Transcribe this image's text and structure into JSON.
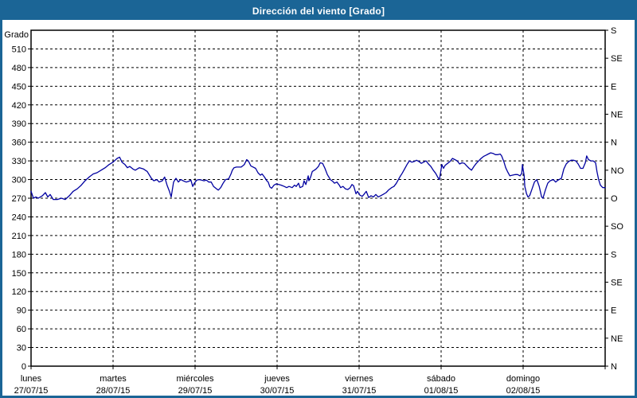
{
  "window": {
    "title": "Dirección del viento [Grado]"
  },
  "colors": {
    "chrome_blue": "#1b6596",
    "series_blue": "#0000a0",
    "grid_color": "#000000",
    "background": "#ffffff"
  },
  "chart_data": {
    "type": "line",
    "title": "Dirección del viento [Grado]",
    "ylabel": "Grado",
    "ylim": [
      0,
      540
    ],
    "grid": "dashed",
    "y_ticks_left": [
      0,
      30,
      60,
      90,
      120,
      150,
      180,
      210,
      240,
      270,
      300,
      330,
      360,
      390,
      420,
      450,
      480,
      510
    ],
    "right_axis_compass": [
      {
        "value": 0,
        "label": "N"
      },
      {
        "value": 45,
        "label": "NE"
      },
      {
        "value": 90,
        "label": "E"
      },
      {
        "value": 135,
        "label": "SE"
      },
      {
        "value": 180,
        "label": "S"
      },
      {
        "value": 225,
        "label": "SO"
      },
      {
        "value": 270,
        "label": "O"
      },
      {
        "value": 315,
        "label": "NO"
      },
      {
        "value": 360,
        "label": "N"
      },
      {
        "value": 405,
        "label": "NE"
      },
      {
        "value": 450,
        "label": "E"
      },
      {
        "value": 495,
        "label": "SE"
      },
      {
        "value": 540,
        "label": "S"
      }
    ],
    "x_axis": {
      "unit": "hours",
      "range_hours": [
        0,
        168
      ],
      "hours_per_day": 24,
      "days": [
        {
          "name": "lunes",
          "date": "27/07/15"
        },
        {
          "name": "martes",
          "date": "28/07/15"
        },
        {
          "name": "miércoles",
          "date": "29/07/15"
        },
        {
          "name": "jueves",
          "date": "30/07/15"
        },
        {
          "name": "viernes",
          "date": "31/07/15"
        },
        {
          "name": "sábado",
          "date": "01/08/15"
        },
        {
          "name": "domingo",
          "date": "02/08/15"
        }
      ]
    },
    "series": [
      {
        "name": "Dirección del viento",
        "color": "#0000a0",
        "points_hours_degrees": [
          [
            0,
            281
          ],
          [
            0.7,
            270
          ],
          [
            1.4,
            272
          ],
          [
            2.1,
            270
          ],
          [
            3.3,
            274
          ],
          [
            4.2,
            279
          ],
          [
            4.9,
            272
          ],
          [
            5.6,
            276
          ],
          [
            6.5,
            268
          ],
          [
            7.7,
            268
          ],
          [
            8.9,
            270
          ],
          [
            10,
            268
          ],
          [
            11.2,
            274
          ],
          [
            12.3,
            281
          ],
          [
            13.5,
            285
          ],
          [
            14.7,
            291
          ],
          [
            15.8,
            298
          ],
          [
            17,
            304
          ],
          [
            18.2,
            309
          ],
          [
            19.3,
            311
          ],
          [
            20.5,
            315
          ],
          [
            21.7,
            319
          ],
          [
            22.8,
            324
          ],
          [
            24,
            328
          ],
          [
            25.2,
            334
          ],
          [
            25.9,
            336
          ],
          [
            26.6,
            328
          ],
          [
            27.5,
            324
          ],
          [
            28.2,
            319
          ],
          [
            28.9,
            321
          ],
          [
            29.8,
            317
          ],
          [
            30.5,
            315
          ],
          [
            31.7,
            319
          ],
          [
            32.9,
            317
          ],
          [
            34,
            313
          ],
          [
            35.2,
            302
          ],
          [
            35.9,
            298
          ],
          [
            36.8,
            300
          ],
          [
            37.5,
            296
          ],
          [
            38.4,
            298
          ],
          [
            39.1,
            304
          ],
          [
            39.8,
            291
          ],
          [
            40.5,
            281
          ],
          [
            41,
            272
          ],
          [
            41.7,
            296
          ],
          [
            42.4,
            302
          ],
          [
            43.1,
            296
          ],
          [
            43.8,
            300
          ],
          [
            44.5,
            298
          ],
          [
            45.4,
            296
          ],
          [
            46.1,
            297
          ],
          [
            46.8,
            299
          ],
          [
            47.3,
            289
          ],
          [
            47.8,
            294
          ],
          [
            48.5,
            299
          ],
          [
            49.2,
            300
          ],
          [
            49.9,
            299
          ],
          [
            50.6,
            298
          ],
          [
            51.3,
            299
          ],
          [
            52,
            296
          ],
          [
            52.7,
            296
          ],
          [
            53.4,
            289
          ],
          [
            54.3,
            285
          ],
          [
            54.8,
            283
          ],
          [
            55.5,
            287
          ],
          [
            56.2,
            294
          ],
          [
            56.9,
            300
          ],
          [
            57.8,
            301
          ],
          [
            58.5,
            309
          ],
          [
            58.9,
            315
          ],
          [
            59.4,
            319
          ],
          [
            60.1,
            320
          ],
          [
            60.8,
            320
          ],
          [
            61.5,
            320
          ],
          [
            62.4,
            324
          ],
          [
            63.1,
            332
          ],
          [
            63.6,
            330
          ],
          [
            64.3,
            322
          ],
          [
            65,
            320
          ],
          [
            65.7,
            318
          ],
          [
            66.4,
            311
          ],
          [
            67.1,
            307
          ],
          [
            67.6,
            309
          ],
          [
            68.3,
            304
          ],
          [
            69,
            298
          ],
          [
            69.4,
            296
          ],
          [
            69.9,
            288
          ],
          [
            70.4,
            286
          ],
          [
            71.1,
            291
          ],
          [
            71.8,
            293
          ],
          [
            72.5,
            292
          ],
          [
            73.2,
            291
          ],
          [
            74.1,
            289
          ],
          [
            74.8,
            287
          ],
          [
            75.5,
            289
          ],
          [
            76.4,
            287
          ],
          [
            77.1,
            291
          ],
          [
            77.6,
            289
          ],
          [
            78.3,
            294
          ],
          [
            78.7,
            287
          ],
          [
            79.5,
            289
          ],
          [
            79.9,
            298
          ],
          [
            80.4,
            292
          ],
          [
            81.1,
            306
          ],
          [
            81.3,
            298
          ],
          [
            81.8,
            304
          ],
          [
            82.3,
            313
          ],
          [
            82.9,
            315
          ],
          [
            83.4,
            317
          ],
          [
            84.1,
            321
          ],
          [
            84.6,
            327
          ],
          [
            85.3,
            326
          ],
          [
            86,
            318
          ],
          [
            86.7,
            308
          ],
          [
            87.6,
            300
          ],
          [
            88.3,
            297
          ],
          [
            88.8,
            294
          ],
          [
            89.5,
            296
          ],
          [
            90.2,
            291
          ],
          [
            90.6,
            287
          ],
          [
            91.3,
            289
          ],
          [
            92,
            285
          ],
          [
            92.7,
            284
          ],
          [
            93.4,
            287
          ],
          [
            93.9,
            292
          ],
          [
            94.4,
            290
          ],
          [
            95.1,
            277
          ],
          [
            95.5,
            281
          ],
          [
            96.2,
            275
          ],
          [
            96.9,
            273
          ],
          [
            97.4,
            276
          ],
          [
            98.1,
            281
          ],
          [
            98.8,
            271
          ],
          [
            99.5,
            274
          ],
          [
            100.2,
            272
          ],
          [
            100.9,
            276
          ],
          [
            101.6,
            272
          ],
          [
            102.3,
            274
          ],
          [
            103,
            276
          ],
          [
            103.9,
            279
          ],
          [
            104.6,
            283
          ],
          [
            105.5,
            287
          ],
          [
            106.2,
            289
          ],
          [
            106.9,
            294
          ],
          [
            107.9,
            304
          ],
          [
            108.6,
            310
          ],
          [
            109.3,
            317
          ],
          [
            110,
            324
          ],
          [
            110.7,
            330
          ],
          [
            111.4,
            328
          ],
          [
            112.1,
            329
          ],
          [
            112.8,
            331
          ],
          [
            113.5,
            329
          ],
          [
            114.2,
            326
          ],
          [
            114.9,
            328
          ],
          [
            115.6,
            330
          ],
          [
            116.3,
            325
          ],
          [
            117,
            321
          ],
          [
            117.7,
            315
          ],
          [
            118.4,
            310
          ],
          [
            119.1,
            303
          ],
          [
            119.5,
            300
          ],
          [
            120.2,
            324
          ],
          [
            120.7,
            318
          ],
          [
            121.2,
            323
          ],
          [
            121.9,
            326
          ],
          [
            122.6,
            329
          ],
          [
            123.3,
            334
          ],
          [
            124,
            332
          ],
          [
            124.7,
            330
          ],
          [
            125.4,
            325
          ],
          [
            126.1,
            327
          ],
          [
            126.8,
            326
          ],
          [
            127.5,
            322
          ],
          [
            128.2,
            318
          ],
          [
            128.9,
            315
          ],
          [
            129.6,
            321
          ],
          [
            130.3,
            326
          ],
          [
            131,
            330
          ],
          [
            131.7,
            334
          ],
          [
            132.4,
            337
          ],
          [
            133.1,
            339
          ],
          [
            133.8,
            341
          ],
          [
            134.5,
            343
          ],
          [
            135.2,
            342
          ],
          [
            135.9,
            340
          ],
          [
            136.6,
            340
          ],
          [
            137.3,
            341
          ],
          [
            137.7,
            338
          ],
          [
            138.4,
            328
          ],
          [
            138.9,
            319
          ],
          [
            139.4,
            313
          ],
          [
            140.1,
            306
          ],
          [
            140.8,
            307
          ],
          [
            141.7,
            308
          ],
          [
            142.4,
            308
          ],
          [
            143.1,
            306
          ],
          [
            143.6,
            310
          ],
          [
            143.8,
            324
          ],
          [
            144.3,
            306
          ],
          [
            144.5,
            289
          ],
          [
            145,
            277
          ],
          [
            145.4,
            272
          ],
          [
            145.9,
            274
          ],
          [
            146.6,
            285
          ],
          [
            147.3,
            296
          ],
          [
            148,
            300
          ],
          [
            148.7,
            289
          ],
          [
            149.4,
            272
          ],
          [
            149.8,
            270
          ],
          [
            150.5,
            283
          ],
          [
            151.2,
            294
          ],
          [
            151.9,
            298
          ],
          [
            152.8,
            300
          ],
          [
            153.5,
            296
          ],
          [
            154.2,
            299
          ],
          [
            155.2,
            302
          ],
          [
            155.9,
            317
          ],
          [
            156.6,
            325
          ],
          [
            157.3,
            329
          ],
          [
            158,
            331
          ],
          [
            158.7,
            331
          ],
          [
            159.4,
            330
          ],
          [
            160.1,
            325
          ],
          [
            160.8,
            318
          ],
          [
            161.5,
            318
          ],
          [
            162.2,
            327
          ],
          [
            162.6,
            338
          ],
          [
            163.1,
            332
          ],
          [
            163.8,
            330
          ],
          [
            164.5,
            330
          ],
          [
            165.2,
            327
          ],
          [
            165.6,
            313
          ],
          [
            166.1,
            300
          ],
          [
            166.6,
            291
          ],
          [
            167.3,
            287
          ],
          [
            168,
            287
          ]
        ]
      }
    ]
  }
}
